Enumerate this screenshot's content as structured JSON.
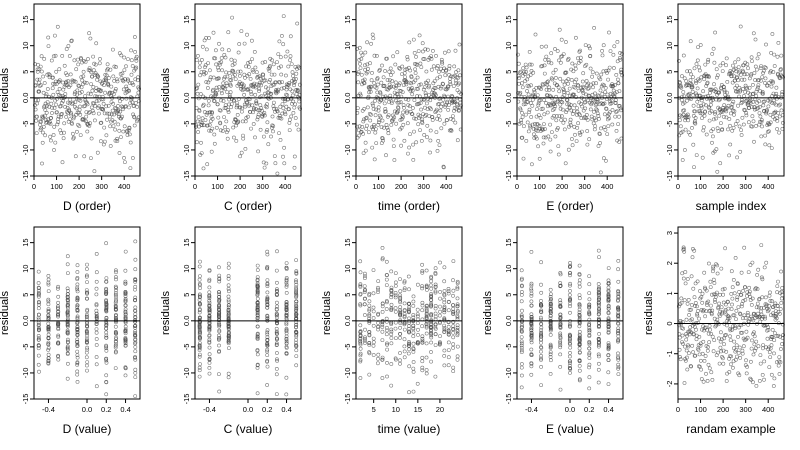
{
  "chart_data": [
    {
      "type": "scatter",
      "xlabel": "D (order)",
      "ylabel": "residuals",
      "xticks": [
        0,
        100,
        200,
        300,
        400
      ],
      "xlim": [
        0,
        470
      ],
      "yticks": [
        "-15",
        "-10",
        "-5",
        "0.0",
        "5",
        "10",
        "15"
      ],
      "ylim": [
        -15,
        18
      ],
      "hline": 0,
      "n": 470,
      "pattern": "order",
      "seed": 11
    },
    {
      "type": "scatter",
      "xlabel": "C (order)",
      "ylabel": "residuals",
      "xticks": [
        0,
        100,
        200,
        300,
        400
      ],
      "xlim": [
        0,
        470
      ],
      "yticks": [
        "-15",
        "-10",
        "-5",
        "0.0",
        "5",
        "10",
        "15"
      ],
      "ylim": [
        -15,
        18
      ],
      "hline": 0,
      "n": 470,
      "pattern": "order",
      "seed": 23
    },
    {
      "type": "scatter",
      "xlabel": "time (order)",
      "ylabel": "residuals",
      "xticks": [
        0,
        100,
        200,
        300,
        400
      ],
      "xlim": [
        0,
        470
      ],
      "yticks": [
        "-15",
        "-10",
        "-5",
        "0.0",
        "5",
        "10",
        "15"
      ],
      "ylim": [
        -15,
        18
      ],
      "hline": 0,
      "n": 470,
      "pattern": "order",
      "seed": 37
    },
    {
      "type": "scatter",
      "xlabel": "E (order)",
      "ylabel": "residuals",
      "xticks": [
        0,
        100,
        200,
        300,
        400
      ],
      "xlim": [
        0,
        470
      ],
      "yticks": [
        "-15",
        "-10",
        "-5",
        "0.0",
        "5",
        "10",
        "15"
      ],
      "ylim": [
        -15,
        18
      ],
      "hline": 0,
      "n": 470,
      "pattern": "order",
      "seed": 41
    },
    {
      "type": "scatter",
      "xlabel": "sample index",
      "ylabel": "residuals",
      "xticks": [
        0,
        100,
        200,
        300,
        400
      ],
      "xlim": [
        0,
        470
      ],
      "yticks": [
        "-15",
        "-10",
        "-5",
        "0.0",
        "5",
        "10",
        "15"
      ],
      "ylim": [
        -15,
        18
      ],
      "hline": 0,
      "n": 470,
      "pattern": "order",
      "seed": 53
    },
    {
      "type": "scatter",
      "xlabel": "D (value)",
      "ylabel": "residuals",
      "xticks": [
        -0.4,
        0,
        0.2,
        0.4
      ],
      "xticklabels": [
        "-0.4",
        "0.0",
        "0.2",
        "0.4"
      ],
      "xlim": [
        -0.55,
        0.55
      ],
      "yticks": [
        "-15",
        "-10",
        "-5",
        "0.0",
        "5",
        "10",
        "15"
      ],
      "ylim": [
        -15,
        18
      ],
      "hline": 0,
      "n": 470,
      "pattern": "value",
      "columns": [
        -0.5,
        -0.4,
        -0.3,
        -0.2,
        -0.1,
        0,
        0.1,
        0.2,
        0.3,
        0.4,
        0.5
      ],
      "seed": 61
    },
    {
      "type": "scatter",
      "xlabel": "C (value)",
      "ylabel": "residuals",
      "xticks": [
        -0.4,
        0,
        0.2,
        0.4
      ],
      "xticklabels": [
        "-0.4",
        "0.0",
        "0.2",
        "0.4"
      ],
      "xlim": [
        -0.55,
        0.55
      ],
      "yticks": [
        "-15",
        "-10",
        "-5",
        "0.0",
        "5",
        "10",
        "15"
      ],
      "ylim": [
        -15,
        18
      ],
      "hline": 0,
      "n": 470,
      "pattern": "value",
      "columns": [
        -0.5,
        -0.4,
        -0.3,
        -0.2,
        0.1,
        0.2,
        0.3,
        0.4,
        0.5
      ],
      "seed": 67
    },
    {
      "type": "scatter",
      "xlabel": "time (value)",
      "ylabel": "residuals",
      "xticks": [
        5,
        10,
        15,
        20
      ],
      "xlim": [
        1,
        25
      ],
      "yticks": [
        "-15",
        "-10",
        "-5",
        "0.0",
        "5",
        "10",
        "15"
      ],
      "ylim": [
        -15,
        18
      ],
      "hline": 0,
      "n": 470,
      "pattern": "value",
      "columns": [
        2,
        3,
        4,
        5,
        6,
        7,
        8,
        9,
        10,
        11,
        12,
        13,
        14,
        15,
        16,
        17,
        18,
        19,
        20,
        21,
        22,
        23,
        24
      ],
      "seed": 71
    },
    {
      "type": "scatter",
      "xlabel": "E (value)",
      "ylabel": "residuals",
      "xticks": [
        -0.4,
        0,
        0.2,
        0.4
      ],
      "xticklabels": [
        "-0.4",
        "0.0",
        "0.2",
        "0.4"
      ],
      "xlim": [
        -0.55,
        0.55
      ],
      "yticks": [
        "-15",
        "-10",
        "-5",
        "0.0",
        "5",
        "10",
        "15"
      ],
      "ylim": [
        -15,
        18
      ],
      "hline": 0,
      "n": 470,
      "pattern": "value",
      "columns": [
        -0.5,
        -0.4,
        -0.3,
        -0.2,
        -0.1,
        0,
        0.1,
        0.2,
        0.3,
        0.4,
        0.5
      ],
      "seed": 79
    },
    {
      "type": "scatter",
      "xlabel": "randam example",
      "ylabel": "residuals",
      "xticks": [
        0,
        100,
        200,
        300,
        400
      ],
      "xlim": [
        0,
        470
      ],
      "yticks": [
        "-2",
        "-1",
        "0",
        "1",
        "2",
        "3"
      ],
      "ylim": [
        -2.5,
        3.2
      ],
      "hline": 0,
      "n": 470,
      "pattern": "order",
      "seed": 83
    }
  ],
  "colors": {
    "points": "#4a4a4a",
    "frame": "#000000",
    "zero_line": "#000000"
  }
}
